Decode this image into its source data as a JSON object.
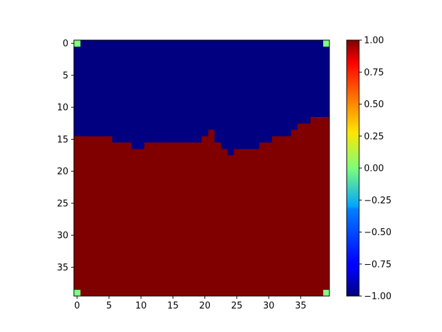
{
  "chart_data": {
    "type": "heatmap",
    "title": "",
    "xlabel": "",
    "ylabel": "",
    "grid": false,
    "rows": 40,
    "cols": 40,
    "xlim": [
      -0.5,
      39.5
    ],
    "ylim": [
      39.5,
      -0.5
    ],
    "value_range": [
      -1.0,
      1.0
    ],
    "colormap": "jet",
    "upper_value": -1.0,
    "lower_value": 1.0,
    "boundary_first_lower_row_by_column": [
      15,
      15,
      15,
      15,
      15,
      15,
      16,
      16,
      16,
      17,
      17,
      16,
      16,
      16,
      16,
      16,
      16,
      16,
      16,
      16,
      15,
      14,
      16,
      17,
      18,
      17,
      17,
      17,
      17,
      16,
      16,
      15,
      15,
      15,
      14,
      13,
      13,
      12,
      12,
      12
    ],
    "corner_cells": [
      {
        "row": 0,
        "col": 0,
        "value": 0.0
      },
      {
        "row": 0,
        "col": 39,
        "value": 0.0
      },
      {
        "row": 39,
        "col": 0,
        "value": 0.0
      },
      {
        "row": 39,
        "col": 39,
        "value": 0.0
      }
    ],
    "x_ticks": [
      {
        "value": 0,
        "label": "0"
      },
      {
        "value": 5,
        "label": "5"
      },
      {
        "value": 10,
        "label": "10"
      },
      {
        "value": 15,
        "label": "15"
      },
      {
        "value": 20,
        "label": "20"
      },
      {
        "value": 25,
        "label": "25"
      },
      {
        "value": 30,
        "label": "30"
      },
      {
        "value": 35,
        "label": "35"
      }
    ],
    "y_ticks": [
      {
        "value": 0,
        "label": "0"
      },
      {
        "value": 5,
        "label": "5"
      },
      {
        "value": 10,
        "label": "10"
      },
      {
        "value": 15,
        "label": "15"
      },
      {
        "value": 20,
        "label": "20"
      },
      {
        "value": 25,
        "label": "25"
      },
      {
        "value": 30,
        "label": "30"
      },
      {
        "value": 35,
        "label": "35"
      }
    ],
    "colorbar": {
      "ticks": [
        {
          "value": 1.0,
          "label": "1.00"
        },
        {
          "value": 0.75,
          "label": "0.75"
        },
        {
          "value": 0.5,
          "label": "0.50"
        },
        {
          "value": 0.25,
          "label": "0.25"
        },
        {
          "value": 0.0,
          "label": "0.00"
        },
        {
          "value": -0.25,
          "label": "−0.25"
        },
        {
          "value": -0.5,
          "label": "−0.50"
        },
        {
          "value": -0.75,
          "label": "−0.75"
        },
        {
          "value": -1.0,
          "label": "−1.00"
        }
      ]
    }
  }
}
